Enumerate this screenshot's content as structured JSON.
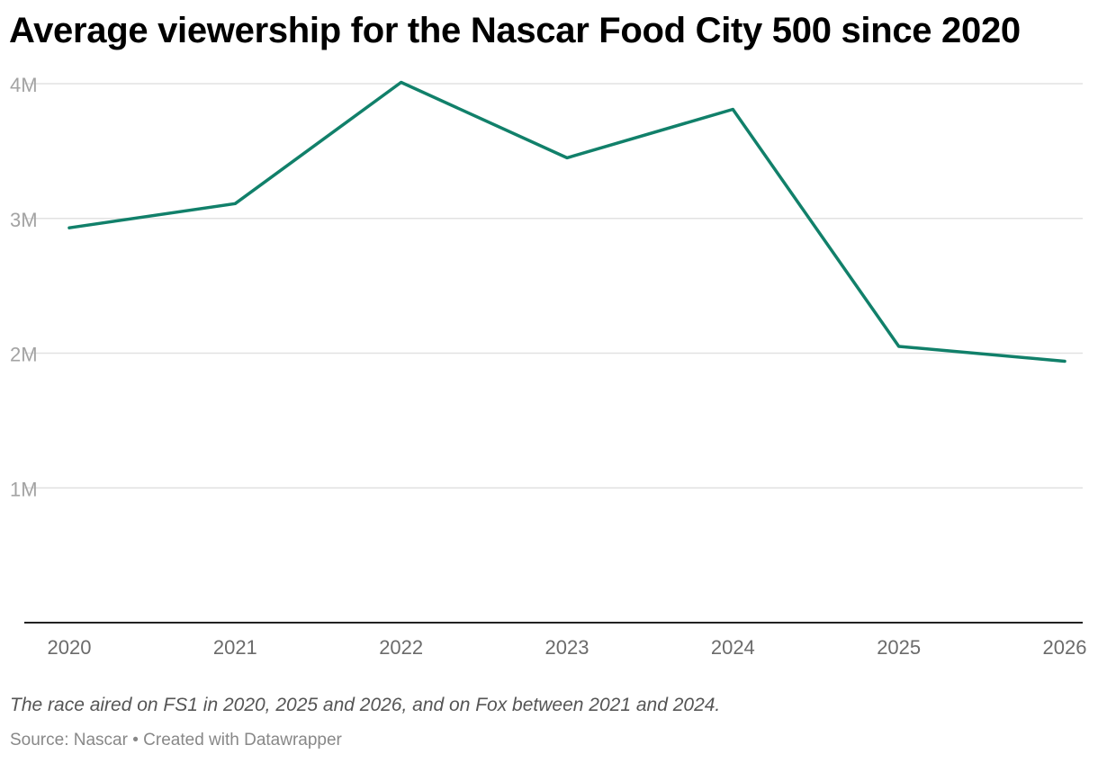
{
  "chart_data": {
    "type": "line",
    "title": "Average viewership for the Nascar Food City 500 since 2020",
    "x": [
      "2020",
      "2021",
      "2022",
      "2023",
      "2024",
      "2025",
      "2026"
    ],
    "series": [
      {
        "values": [
          2930000,
          3110000,
          4010000,
          3450000,
          3810000,
          2050000,
          1940000
        ],
        "color": "#11806a"
      }
    ],
    "ylim": [
      0,
      4000000
    ],
    "yticks": [
      1000000,
      2000000,
      3000000,
      4000000
    ],
    "ytick_labels": [
      "1M",
      "2M",
      "3M",
      "4M"
    ],
    "grid": true,
    "xlabel": "",
    "ylabel": ""
  },
  "note": "The race aired on FS1 in 2020, 2025 and 2026, and on Fox between 2021 and 2024.",
  "source": {
    "label": "Source:",
    "name": "Nascar",
    "separator": "•",
    "credit": "Created with Datawrapper"
  }
}
